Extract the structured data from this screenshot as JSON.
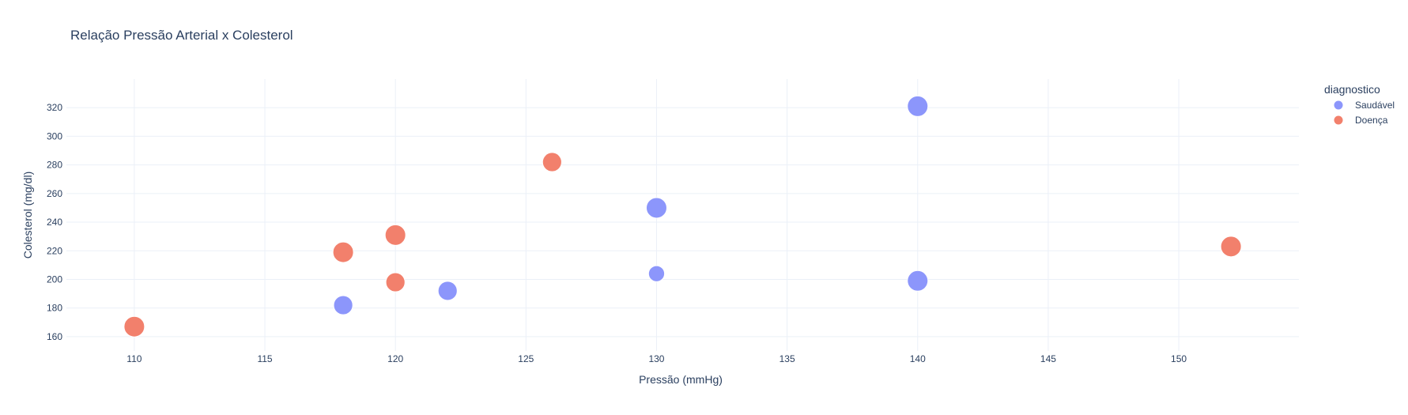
{
  "chart_data": {
    "type": "scatter",
    "title": "Relação Pressão Arterial x Colesterol",
    "xlabel": "Pressão (mmHg)",
    "ylabel": "Colesterol (mg/dl)",
    "xlim": [
      107.4,
      154.6
    ],
    "ylim": [
      150,
      340
    ],
    "xticks": [
      110,
      115,
      120,
      125,
      130,
      135,
      140,
      145,
      150
    ],
    "yticks": [
      160,
      180,
      200,
      220,
      240,
      260,
      280,
      300,
      320
    ],
    "grid": true,
    "legend": {
      "title": "diagnostico",
      "position": "top-right"
    },
    "series": [
      {
        "name": "Saudável",
        "color": "#8c96fb",
        "points": [
          {
            "x": 140,
            "y": 321,
            "size": 1.0
          },
          {
            "x": 130,
            "y": 250,
            "size": 1.0
          },
          {
            "x": 130,
            "y": 204,
            "size": 0.78
          },
          {
            "x": 140,
            "y": 199,
            "size": 1.0
          },
          {
            "x": 122,
            "y": 192,
            "size": 0.93
          },
          {
            "x": 118,
            "y": 182,
            "size": 0.93
          }
        ]
      },
      {
        "name": "Doença",
        "color": "#f2806c",
        "points": [
          {
            "x": 126,
            "y": 282,
            "size": 0.93
          },
          {
            "x": 120,
            "y": 231,
            "size": 1.0
          },
          {
            "x": 152,
            "y": 223,
            "size": 1.0
          },
          {
            "x": 118,
            "y": 219,
            "size": 1.0
          },
          {
            "x": 120,
            "y": 198,
            "size": 0.93
          },
          {
            "x": 110,
            "y": 167,
            "size": 1.0
          }
        ]
      }
    ]
  }
}
